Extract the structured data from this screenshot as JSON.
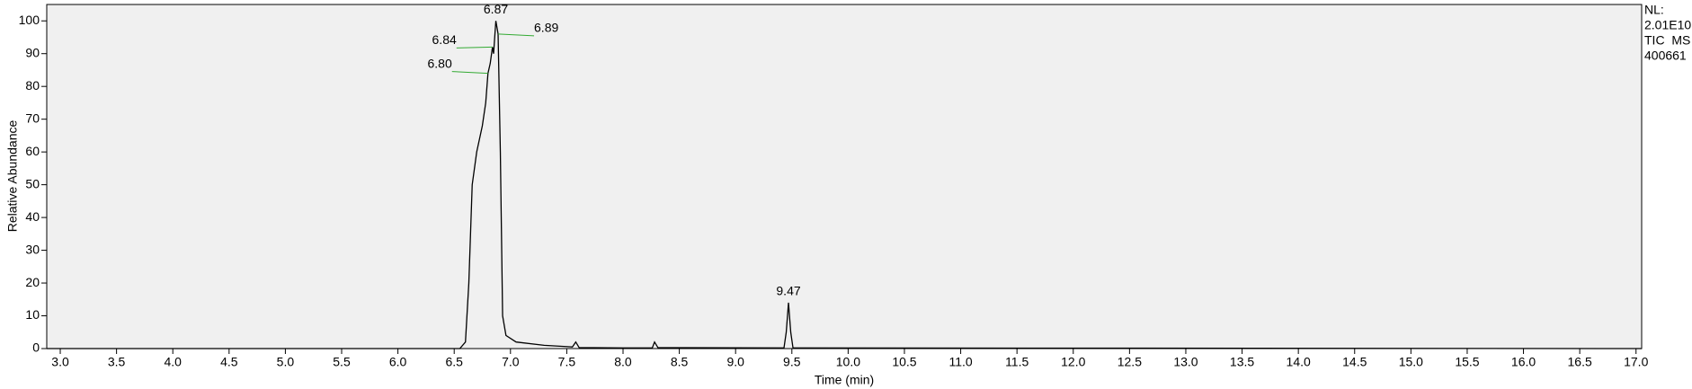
{
  "chart_data": {
    "type": "line",
    "x_label": "Time (min)",
    "y_label": "Relative Abundance",
    "side_notes": [
      "NL:",
      "2.01E10",
      "TIC  MS",
      "400661"
    ],
    "color": "#000000",
    "x": [
      2.88,
      6.55,
      6.6,
      6.63,
      6.66,
      6.7,
      6.75,
      6.78,
      6.8,
      6.82,
      6.84,
      6.85,
      6.87,
      6.88,
      6.89,
      6.91,
      6.93,
      6.96,
      7.05,
      7.3,
      7.55,
      7.58,
      7.61,
      8.0,
      8.26,
      8.28,
      8.31,
      9.43,
      9.45,
      9.47,
      9.49,
      9.51,
      17.05
    ],
    "values": [
      0,
      0,
      2,
      20,
      50,
      60,
      68,
      75,
      84,
      87,
      92,
      90,
      100,
      98,
      96,
      60,
      10,
      4,
      2,
      1,
      0.5,
      2,
      0.3,
      0.2,
      0.2,
      2,
      0.3,
      0.2,
      5,
      14,
      5,
      0.2,
      0
    ],
    "annotations": [
      {
        "text": "6.87",
        "x": 6.87,
        "y": 100
      },
      {
        "text": "6.89",
        "x": 6.89,
        "y": 96
      },
      {
        "text": "6.84",
        "x": 6.84,
        "y": 92
      },
      {
        "text": "6.80",
        "x": 6.8,
        "y": 84
      },
      {
        "text": "9.47",
        "x": 9.47,
        "y": 14
      }
    ],
    "xlim": [
      2.88,
      17.05
    ],
    "ylim": [
      0,
      105
    ],
    "xticks": [
      {
        "value": 3,
        "label": "3.0"
      },
      {
        "value": 3.5,
        "label": "3.5"
      },
      {
        "value": 4,
        "label": "4.0"
      },
      {
        "value": 4.5,
        "label": "4.5"
      },
      {
        "value": 5,
        "label": "5.0"
      },
      {
        "value": 5.5,
        "label": "5.5"
      },
      {
        "value": 6,
        "label": "6.0"
      },
      {
        "value": 6.5,
        "label": "6.5"
      },
      {
        "value": 7,
        "label": "7.0"
      },
      {
        "value": 7.5,
        "label": "7.5"
      },
      {
        "value": 8,
        "label": "8.0"
      },
      {
        "value": 8.5,
        "label": "8.5"
      },
      {
        "value": 9,
        "label": "9.0"
      },
      {
        "value": 9.5,
        "label": "9.5"
      },
      {
        "value": 10,
        "label": "10.0"
      },
      {
        "value": 10.5,
        "label": "10.5"
      },
      {
        "value": 11,
        "label": "11.0"
      },
      {
        "value": 11.5,
        "label": "11.5"
      },
      {
        "value": 12,
        "label": "12.0"
      },
      {
        "value": 12.5,
        "label": "12.5"
      },
      {
        "value": 13,
        "label": "13.0"
      },
      {
        "value": 13.5,
        "label": "13.5"
      },
      {
        "value": 14,
        "label": "14.0"
      },
      {
        "value": 14.5,
        "label": "14.5"
      },
      {
        "value": 15,
        "label": "15.0"
      },
      {
        "value": 15.5,
        "label": "15.5"
      },
      {
        "value": 16,
        "label": "16.0"
      },
      {
        "value": 16.5,
        "label": "16.5"
      },
      {
        "value": 17,
        "label": "17.0"
      }
    ],
    "yticks": [
      0,
      10,
      20,
      30,
      40,
      50,
      60,
      70,
      80,
      90,
      100
    ]
  }
}
